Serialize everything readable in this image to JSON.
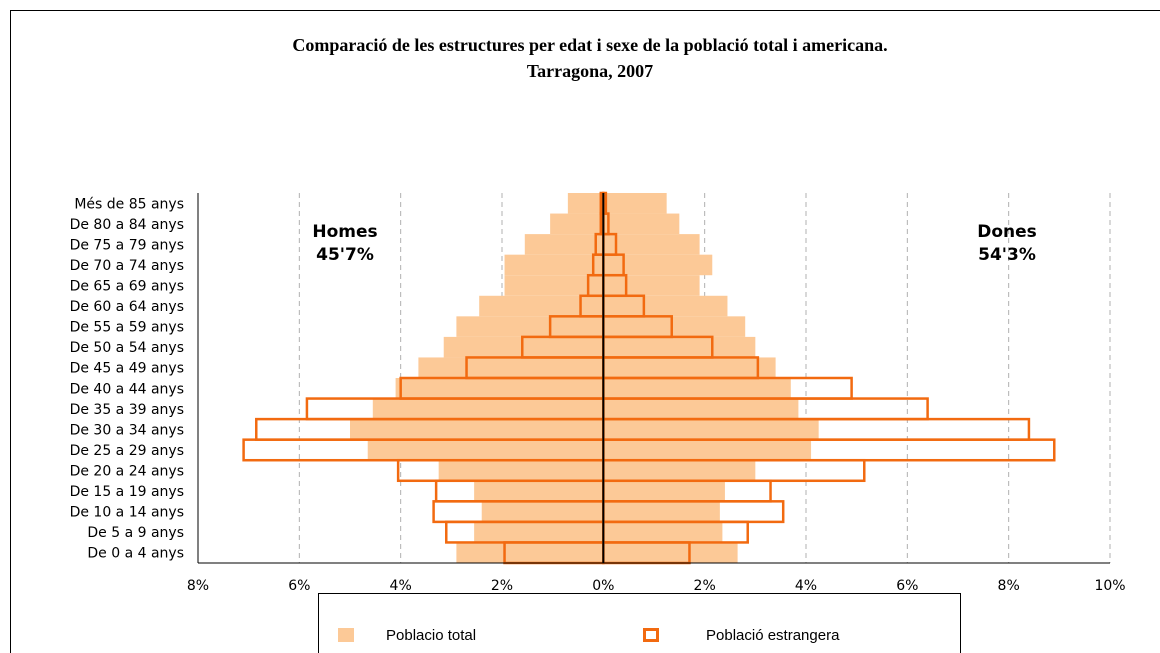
{
  "chart_data": {
    "type": "pyramid",
    "title": "Comparació de les estructures per edat i sexe de la població total i americana.",
    "subtitle": "Tarragona, 2007",
    "categories": [
      "Més de 85 anys",
      "De 80 a 84 anys",
      "De 75 a 79 anys",
      "De 70 a 74 anys",
      "De 65 a 69 anys",
      "De 60 a 64 anys",
      "De 55 a 59 anys",
      "De 50 a 54 anys",
      "De 45 a 49 anys",
      "De 40 a 44 anys",
      "De 35 a 39 anys",
      "De 30 a 34 anys",
      "De 25 a 29 anys",
      "De 20 a 24 anys",
      "De 15 a 19 anys",
      "De 10 a 14 anys",
      "De 5 a 9 anys",
      "De 0 a 4 anys"
    ],
    "series": [
      {
        "name": "Poblacio total",
        "color": "#fcc997",
        "style": "filled",
        "homes": [
          -0.7,
          -1.05,
          -1.55,
          -1.95,
          -1.95,
          -2.45,
          -2.9,
          -3.15,
          -3.65,
          -4.1,
          -4.55,
          -5.0,
          -4.65,
          -3.25,
          -2.55,
          -2.4,
          -2.55,
          -2.9
        ],
        "dones": [
          1.25,
          1.5,
          1.9,
          2.15,
          1.9,
          2.45,
          2.8,
          3.0,
          3.4,
          3.7,
          3.85,
          4.25,
          4.1,
          3.0,
          2.4,
          2.3,
          2.35,
          2.65
        ]
      },
      {
        "name": "Població estrangera",
        "color": "#f26a10",
        "style": "outline",
        "homes": [
          -0.05,
          -0.05,
          -0.15,
          -0.2,
          -0.3,
          -0.45,
          -1.05,
          -1.6,
          -2.7,
          -4.0,
          -5.85,
          -6.85,
          -7.1,
          -4.05,
          -3.3,
          -3.35,
          -3.1,
          -1.95
        ],
        "dones": [
          0.05,
          0.1,
          0.25,
          0.4,
          0.45,
          0.8,
          1.35,
          2.15,
          3.05,
          4.9,
          6.4,
          8.4,
          8.9,
          5.15,
          3.3,
          3.55,
          2.85,
          1.7
        ]
      }
    ],
    "annotations": [
      {
        "label": "Homes",
        "value": "45'7%"
      },
      {
        "label": "Dones",
        "value": "54'3%"
      }
    ],
    "xlim": [
      -8,
      10
    ],
    "xticks": [
      {
        "value": -8,
        "label": "8%"
      },
      {
        "value": -6,
        "label": "6%"
      },
      {
        "value": -4,
        "label": "4%"
      },
      {
        "value": -2,
        "label": "2%"
      },
      {
        "value": 0,
        "label": "0%"
      },
      {
        "value": 2,
        "label": "2%"
      },
      {
        "value": 4,
        "label": "4%"
      },
      {
        "value": 6,
        "label": "6%"
      },
      {
        "value": 8,
        "label": "8%"
      },
      {
        "value": 10,
        "label": "10%"
      }
    ],
    "grid": true
  }
}
